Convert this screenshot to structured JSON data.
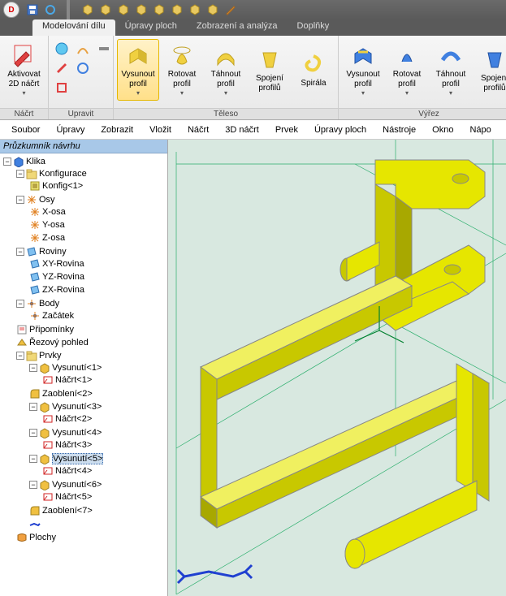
{
  "tabs": {
    "active": "Modelování dílu",
    "items": [
      "Modelování dílu",
      "Úpravy ploch",
      "Zobrazení a analýza",
      "Doplňky"
    ]
  },
  "ribbon": {
    "groups": [
      {
        "label": "Náčrt",
        "buttons": [
          {
            "label": "Aktivovat\n2D náčrt",
            "drop": true,
            "icon": "sketch-red"
          }
        ]
      },
      {
        "label": "Upravit",
        "small": true
      },
      {
        "label": "Těleso",
        "buttons": [
          {
            "label": "Vysunout\nprofil",
            "drop": true,
            "icon": "extrude",
            "active": true
          },
          {
            "label": "Rotovat\nprofil",
            "drop": true,
            "icon": "revolve"
          },
          {
            "label": "Táhnout\nprofil",
            "drop": true,
            "icon": "sweep"
          },
          {
            "label": "Spojení\nprofilů",
            "drop": false,
            "icon": "loft"
          },
          {
            "label": "Spirála",
            "drop": false,
            "icon": "spiral"
          }
        ]
      },
      {
        "label": "Výřez",
        "buttons": [
          {
            "label": "Vysunout\nprofil",
            "drop": true,
            "icon": "cut-extrude"
          },
          {
            "label": "Rotovat\nprofil",
            "drop": true,
            "icon": "cut-revolve"
          },
          {
            "label": "Táhnout\nprofil",
            "drop": true,
            "icon": "cut-sweep"
          },
          {
            "label": "Spojení\nprofilů",
            "drop": false,
            "icon": "cut-loft"
          }
        ]
      }
    ]
  },
  "menus": [
    "Soubor",
    "Úpravy",
    "Zobrazit",
    "Vložit",
    "Náčrt",
    "3D náčrt",
    "Prvek",
    "Úpravy ploch",
    "Nástroje",
    "Okno",
    "Nápo"
  ],
  "sidebar_title": "Průzkumník návrhu",
  "tree": {
    "root": "Klika",
    "konfig_head": "Konfigurace",
    "konfig_item": "Konfig<1>",
    "osy_head": "Osy",
    "osy": [
      "X-osa",
      "Y-osa",
      "Z-osa"
    ],
    "roviny_head": "Roviny",
    "roviny": [
      "XY-Rovina",
      "YZ-Rovina",
      "ZX-Rovina"
    ],
    "body_head": "Body",
    "body_item": "Začátek",
    "pripominky": "Připomínky",
    "rezovy": "Řezový pohled",
    "prvky_head": "Prvky",
    "prvky": [
      {
        "name": "Vysunutí<1>",
        "child": "Náčrt<1>"
      },
      {
        "name": "Zaoblení<2>"
      },
      {
        "name": "Vysunutí<3>",
        "child": "Náčrt<2>"
      },
      {
        "name": "Vysunutí<4>",
        "child": "Náčrt<3>"
      },
      {
        "name": "Vysunutí<5>",
        "child": "Náčrt<4>",
        "selected": true
      },
      {
        "name": "Vysunutí<6>",
        "child": "Náčrt<5>"
      },
      {
        "name": "Zaoblení<7>"
      }
    ],
    "plochy": "Plochy"
  },
  "colors": {
    "part": "#e6e600",
    "part_shade": "#c8c800",
    "part_deep": "#a8a800",
    "grid": "#00a050",
    "bg": "#d8e8e0"
  }
}
